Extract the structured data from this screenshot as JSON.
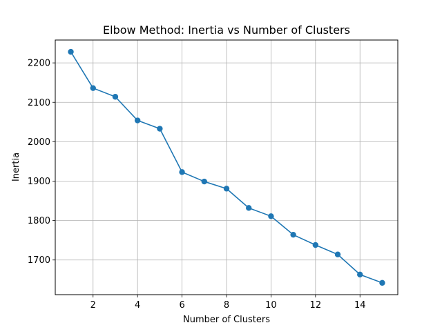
{
  "chart_data": {
    "type": "line",
    "title": "Elbow Method: Inertia vs Number of Clusters",
    "xlabel": "Number of Clusters",
    "ylabel": "Inertia",
    "xlim": [
      0.3,
      15.7
    ],
    "ylim": [
      1612,
      2258
    ],
    "xticks": [
      2,
      4,
      6,
      8,
      10,
      12,
      14
    ],
    "yticks": [
      1700,
      1800,
      1900,
      2000,
      2100,
      2200
    ],
    "grid": true,
    "series": [
      {
        "x": [
          1,
          2,
          3,
          4,
          5,
          6,
          7,
          8,
          9,
          10,
          11,
          12,
          13,
          14,
          15
        ],
        "values": [
          2228,
          2136,
          2114,
          2054,
          2033,
          1923,
          1899,
          1881,
          1832,
          1811,
          1764,
          1738,
          1714,
          1663,
          1642
        ],
        "color": "#1f77b4"
      }
    ]
  }
}
